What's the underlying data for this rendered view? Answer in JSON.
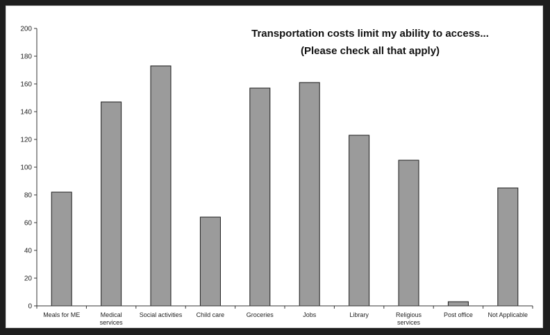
{
  "chart_data": {
    "type": "bar",
    "title": "Transportation costs limit my ability to access...",
    "subtitle": "(Please check all that apply)",
    "categories": [
      "Meals for ME",
      "Medical services",
      "Social activities",
      "Child care",
      "Groceries",
      "Jobs",
      "Library",
      "Religious services",
      "Post office",
      "Not Applicable"
    ],
    "category_label_lines": [
      [
        "Meals for ME"
      ],
      [
        "Medical",
        "services"
      ],
      [
        "Social activities"
      ],
      [
        "Child care"
      ],
      [
        "Groceries"
      ],
      [
        "Jobs"
      ],
      [
        "Library"
      ],
      [
        "Religious",
        "services"
      ],
      [
        "Post office"
      ],
      [
        "Not Applicable"
      ]
    ],
    "values": [
      82,
      147,
      173,
      64,
      157,
      161,
      123,
      105,
      3,
      85
    ],
    "yticks": [
      "0",
      "20",
      "40",
      "60",
      "80",
      "100",
      "120",
      "140",
      "160",
      "180",
      "200"
    ],
    "ylim": [
      0,
      200
    ],
    "xlabel": "",
    "ylabel": "",
    "grid": false,
    "legend": "none",
    "bar_color": "#9b9b9b",
    "bar_edge_color": "#1a1a1a"
  }
}
